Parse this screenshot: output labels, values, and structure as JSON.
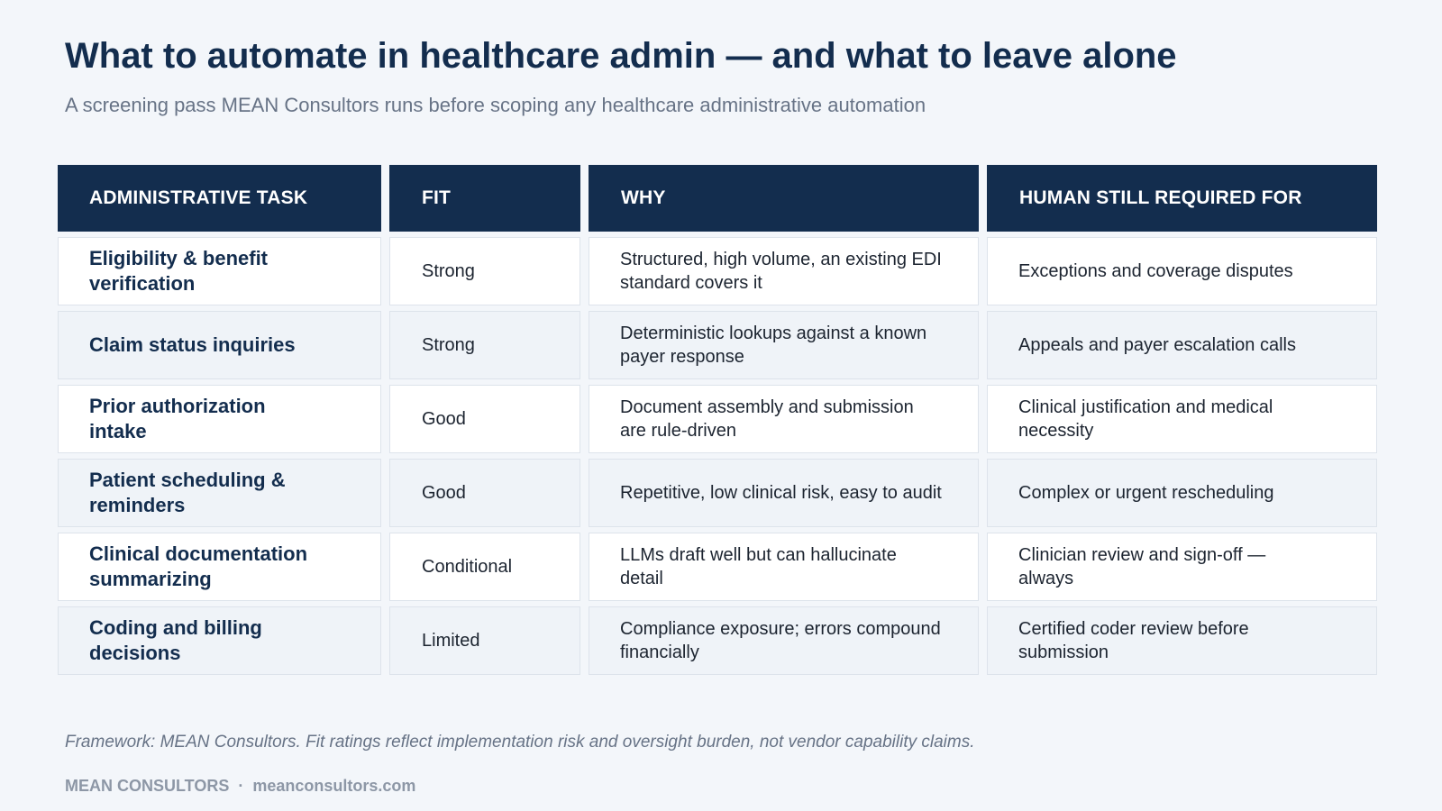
{
  "title": "What to automate in healthcare admin — and what to leave alone",
  "subtitle": "A screening pass MEAN Consultors runs before scoping any healthcare administrative automation",
  "table": {
    "headers": [
      "ADMINISTRATIVE TASK",
      "FIT",
      "WHY",
      "HUMAN STILL REQUIRED FOR"
    ],
    "rows": [
      {
        "task": "Eligibility & benefit verification",
        "fit": "Strong",
        "why": "Structured, high volume, an existing EDI standard covers it",
        "human": "Exceptions and coverage disputes"
      },
      {
        "task": "Claim status inquiries",
        "fit": "Strong",
        "why": "Deterministic lookups against a known payer response",
        "human": "Appeals and payer escalation calls"
      },
      {
        "task": "Prior authorization intake",
        "fit": "Good",
        "why": "Document assembly and submission are rule-driven",
        "human": "Clinical justification and medical necessity"
      },
      {
        "task": "Patient scheduling & reminders",
        "fit": "Good",
        "why": "Repetitive, low clinical risk, easy to audit",
        "human": "Complex or urgent rescheduling"
      },
      {
        "task": "Clinical documentation summarizing",
        "fit": "Conditional",
        "why": "LLMs draft well but can hallucinate detail",
        "human": "Clinician review and sign-off — always"
      },
      {
        "task": "Coding and billing decisions",
        "fit": "Limited",
        "why": "Compliance exposure; errors compound financially",
        "human": "Certified coder review before submission"
      }
    ]
  },
  "footnote": "Framework: MEAN Consultors. Fit ratings reflect implementation risk and oversight burden, not vendor capability claims.",
  "footer": {
    "brand": "MEAN CONSULTORS",
    "separator": "·",
    "url": "meanconsultors.com"
  }
}
